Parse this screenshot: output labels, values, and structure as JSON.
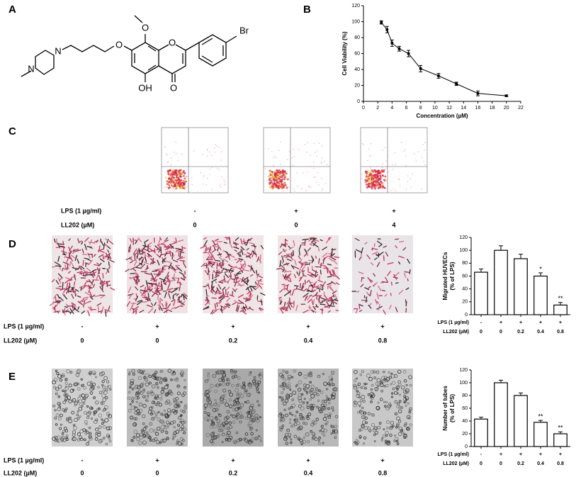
{
  "panel_labels": [
    "A",
    "B",
    "C",
    "D",
    "E"
  ],
  "structure": {
    "atoms": [
      "Br",
      "O",
      "O",
      "N",
      "N",
      "OH",
      "O",
      "O"
    ]
  },
  "flow_cytometry": {
    "treatments": [
      {
        "label": "LPS (1 µg/ml)",
        "cells": [
          "-",
          "+",
          "+"
        ]
      },
      {
        "label": "LL202 (µM)",
        "cells": [
          "0",
          "0",
          "4"
        ]
      }
    ]
  },
  "migration_images": {
    "treatments": [
      {
        "label": "LPS (1 µg/ml)",
        "cells": [
          "-",
          "+",
          "+",
          "+",
          "+"
        ]
      },
      {
        "label": "LL202 (µM)",
        "cells": [
          "0",
          "0",
          "0.2",
          "0.4",
          "0.8"
        ]
      }
    ]
  },
  "tube_images": {
    "treatments": [
      {
        "label": "LPS (1 µg/ml)",
        "cells": [
          "-",
          "+",
          "+",
          "+",
          "+"
        ]
      },
      {
        "label": "LL202 (µM)",
        "cells": [
          "0",
          "0",
          "0.2",
          "0.4",
          "0.8"
        ]
      }
    ]
  },
  "chart_data": [
    {
      "type": "line",
      "xlabel": "Concentration (µM)",
      "ylabel": "Cell Viability (%)",
      "x": [
        2.5,
        3.3,
        4,
        5,
        6.3,
        8,
        10.5,
        13,
        16,
        20
      ],
      "values": [
        99,
        90,
        73,
        66,
        60,
        41,
        32,
        22,
        10,
        7
      ],
      "errors": [
        2,
        4,
        4,
        3,
        4,
        4,
        3,
        2,
        3,
        1
      ],
      "color": "#000000",
      "xlim": [
        0,
        22
      ],
      "xticks": [
        0,
        2,
        4,
        6,
        8,
        10,
        12,
        14,
        16,
        18,
        20,
        22
      ],
      "ylim": [
        0,
        120
      ],
      "yticks": [
        0,
        20,
        40,
        60,
        80,
        100,
        120
      ]
    },
    {
      "type": "bar",
      "ylabel": [
        "Migrated HUVECs",
        "(% of LPS)"
      ],
      "values": [
        66,
        100,
        87,
        60,
        15
      ],
      "errors": [
        5,
        7,
        7,
        5,
        4
      ],
      "color": "#ffffff",
      "ylim": [
        0,
        120
      ],
      "yticks": [
        0,
        20,
        40,
        60,
        80,
        100,
        120
      ],
      "annotations": [
        {
          "index": 3,
          "text": "*"
        },
        {
          "index": 4,
          "text": "**"
        }
      ],
      "treatments": [
        {
          "label": "LPS (1 µg/ml)",
          "cells": [
            "-",
            "+",
            "+",
            "+",
            "+"
          ]
        },
        {
          "label": "LL202 (µM)",
          "cells": [
            "0",
            "0",
            "0.2",
            "0.4",
            "0.8"
          ]
        }
      ]
    },
    {
      "type": "bar",
      "ylabel": [
        "Number of tubes",
        "(% of LPS)"
      ],
      "values": [
        43,
        100,
        80,
        38,
        20
      ],
      "errors": [
        3,
        4,
        4,
        3,
        3
      ],
      "color": "#ffffff",
      "ylim": [
        0,
        120
      ],
      "yticks": [
        0,
        20,
        40,
        60,
        80,
        100,
        120
      ],
      "annotations": [
        {
          "index": 3,
          "text": "**"
        },
        {
          "index": 4,
          "text": "**"
        }
      ],
      "treatments": [
        {
          "label": "LPS (1 µg/ml)",
          "cells": [
            "-",
            "+",
            "+",
            "+",
            "+"
          ]
        },
        {
          "label": "LL202 (µM)",
          "cells": [
            "0",
            "0",
            "0.2",
            "0.4",
            "0.8"
          ]
        }
      ]
    }
  ]
}
